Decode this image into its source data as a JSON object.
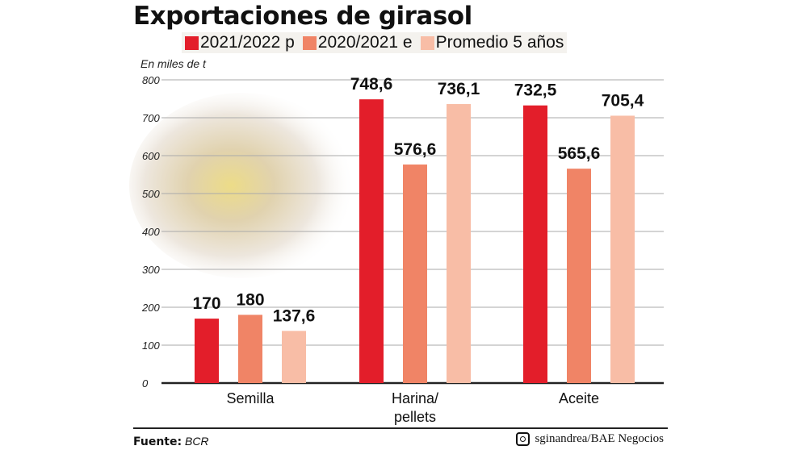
{
  "chart_data": {
    "type": "bar",
    "title": "Exportaciones de girasol",
    "ylabel": "En miles de t",
    "categories": [
      "Semilla",
      "Harina/ pellets",
      "Aceite"
    ],
    "category_lines": [
      [
        "Semilla"
      ],
      [
        "Harina/",
        "pellets"
      ],
      [
        "Aceite"
      ]
    ],
    "series": [
      {
        "name": "2021/2022 p",
        "values": [
          170,
          748.6,
          732.5
        ],
        "labels": [
          "170",
          "748,6",
          "732,5"
        ],
        "color": "#e31e2a"
      },
      {
        "name": "2020/2021 e",
        "values": [
          180,
          576.6,
          565.6
        ],
        "labels": [
          "180",
          "576,6",
          "565,6"
        ],
        "color": "#f08466"
      },
      {
        "name": "Promedio 5 años",
        "values": [
          137.6,
          736.1,
          705.4
        ],
        "labels": [
          "137,6",
          "736,1",
          "705,4"
        ],
        "color": "#f8bda6"
      }
    ],
    "ylim": [
      0,
      800
    ],
    "yticks": [
      0,
      100,
      200,
      300,
      400,
      500,
      600,
      700,
      800
    ],
    "grid": true,
    "legend_position": "top"
  },
  "footer": {
    "source_label": "Fuente:",
    "source": "BCR",
    "credit": "sginandrea/BAE Negocios",
    "credit_icon": "instagram-icon"
  }
}
